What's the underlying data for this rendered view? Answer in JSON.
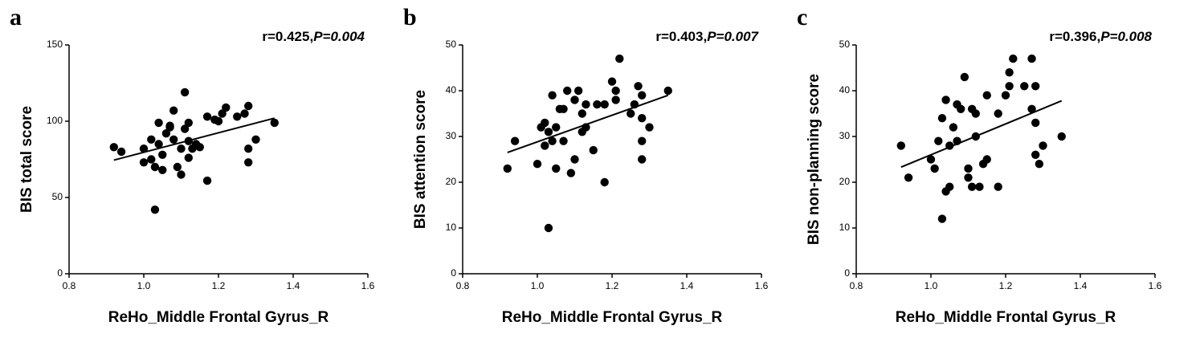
{
  "chart_data": [
    {
      "type": "scatter",
      "panel": "a",
      "annotation_r": "r=0.425,",
      "annotation_p": "P=0.004",
      "xlabel": "ReHo_Middle Frontal Gyrus_R",
      "ylabel": "BIS total score",
      "color": "#000000",
      "xlim": [
        0.8,
        1.6
      ],
      "xticks": [
        0.8,
        {
          "value": 1,
          "label": "1.0"
        },
        1.2,
        1.4,
        1.6
      ],
      "ylim": [
        0,
        150
      ],
      "yticks": [
        0,
        50,
        100,
        150
      ],
      "x": [
        0.92,
        0.94,
        1.0,
        1.0,
        1.02,
        1.02,
        1.03,
        1.03,
        1.04,
        1.04,
        1.05,
        1.05,
        1.06,
        1.07,
        1.07,
        1.08,
        1.08,
        1.09,
        1.1,
        1.1,
        1.11,
        1.11,
        1.12,
        1.12,
        1.12,
        1.13,
        1.14,
        1.15,
        1.17,
        1.17,
        1.19,
        1.2,
        1.21,
        1.22,
        1.25,
        1.27,
        1.28,
        1.28,
        1.28,
        1.3,
        1.35
      ],
      "y": [
        83,
        80,
        82,
        73,
        75,
        88,
        42,
        70,
        85,
        99,
        68,
        78,
        92,
        97,
        96,
        107,
        88,
        70,
        65,
        82,
        119,
        95,
        99,
        87,
        76,
        82,
        85,
        83,
        61,
        103,
        101,
        100,
        105,
        109,
        103,
        105,
        110,
        82,
        73,
        88,
        99
      ],
      "fit": {
        "x": [
          0.92,
          1.35
        ],
        "y": [
          74.5,
          102
        ]
      }
    },
    {
      "type": "scatter",
      "panel": "b",
      "annotation_r": "r=0.403,",
      "annotation_p": "P=0.007",
      "xlabel": "ReHo_Middle Frontal Gyrus_R",
      "ylabel": "BIS attention score",
      "color": "#000000",
      "xlim": [
        0.8,
        1.6
      ],
      "xticks": [
        0.8,
        {
          "value": 1,
          "label": "1.0"
        },
        1.2,
        1.4,
        1.6
      ],
      "ylim": [
        0,
        50
      ],
      "yticks": [
        0,
        10,
        20,
        30,
        40,
        50
      ],
      "x": [
        0.92,
        0.94,
        1.0,
        1.01,
        1.02,
        1.02,
        1.03,
        1.03,
        1.04,
        1.04,
        1.05,
        1.05,
        1.06,
        1.07,
        1.07,
        1.08,
        1.09,
        1.1,
        1.1,
        1.11,
        1.12,
        1.12,
        1.13,
        1.13,
        1.15,
        1.16,
        1.18,
        1.18,
        1.2,
        1.21,
        1.21,
        1.22,
        1.25,
        1.26,
        1.27,
        1.28,
        1.28,
        1.28,
        1.28,
        1.3,
        1.35
      ],
      "y": [
        23,
        29,
        24,
        32,
        33,
        28,
        10,
        31,
        39,
        29,
        23,
        32,
        36,
        36,
        29,
        40,
        22,
        38,
        25,
        40,
        35,
        31,
        32,
        37,
        27,
        37,
        20,
        37,
        42,
        38,
        40,
        47,
        35,
        37,
        41,
        39,
        34,
        29,
        25,
        32,
        40
      ],
      "fit": {
        "x": [
          0.92,
          1.35
        ],
        "y": [
          26.5,
          39
        ]
      }
    },
    {
      "type": "scatter",
      "panel": "c",
      "annotation_r": "r=0.396,",
      "annotation_p": "P=0.008",
      "xlabel": "ReHo_Middle Frontal Gyrus_R",
      "ylabel": "BIS non-planning score",
      "color": "#000000",
      "xlim": [
        0.8,
        1.6
      ],
      "xticks": [
        0.8,
        {
          "value": 1,
          "label": "1.0"
        },
        1.2,
        1.4,
        1.6
      ],
      "ylim": [
        0,
        50
      ],
      "yticks": [
        0,
        10,
        20,
        30,
        40,
        50
      ],
      "x": [
        0.92,
        0.94,
        1.0,
        1.01,
        1.02,
        1.03,
        1.03,
        1.04,
        1.04,
        1.05,
        1.05,
        1.06,
        1.07,
        1.07,
        1.08,
        1.09,
        1.1,
        1.1,
        1.11,
        1.11,
        1.12,
        1.12,
        1.13,
        1.14,
        1.15,
        1.15,
        1.18,
        1.18,
        1.2,
        1.21,
        1.21,
        1.22,
        1.25,
        1.27,
        1.27,
        1.28,
        1.28,
        1.28,
        1.29,
        1.3,
        1.35
      ],
      "y": [
        28,
        21,
        25,
        23,
        29,
        34,
        12,
        38,
        18,
        19,
        28,
        32,
        37,
        29,
        36,
        43,
        21,
        23,
        19,
        36,
        35,
        30,
        19,
        24,
        25,
        39,
        19,
        35,
        39,
        41,
        44,
        47,
        41,
        36,
        47,
        41,
        33,
        26,
        24,
        28,
        30
      ],
      "fit": {
        "x": [
          0.92,
          1.35
        ],
        "y": [
          23.3,
          37.8
        ]
      }
    }
  ]
}
